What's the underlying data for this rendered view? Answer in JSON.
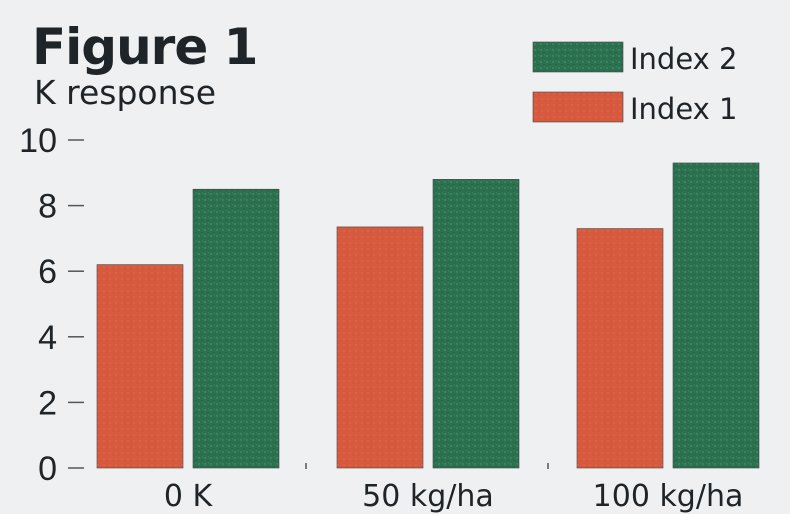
{
  "chart_data": {
    "type": "bar",
    "title": "Figure 1",
    "subtitle": "K response",
    "categories": [
      "0 K",
      "50 kg/ha",
      "100 kg/ha"
    ],
    "series": [
      {
        "name": "Index 1",
        "color": "#d75a3f",
        "values": [
          6.2,
          7.35,
          7.3
        ]
      },
      {
        "name": "Index 2",
        "color": "#2b7150",
        "values": [
          8.5,
          8.8,
          9.3
        ]
      }
    ],
    "ylim": [
      0,
      10
    ],
    "yticks": [
      "0",
      "2",
      "4",
      "6",
      "8",
      "10"
    ],
    "grid": false,
    "legend_position": "top-right"
  }
}
